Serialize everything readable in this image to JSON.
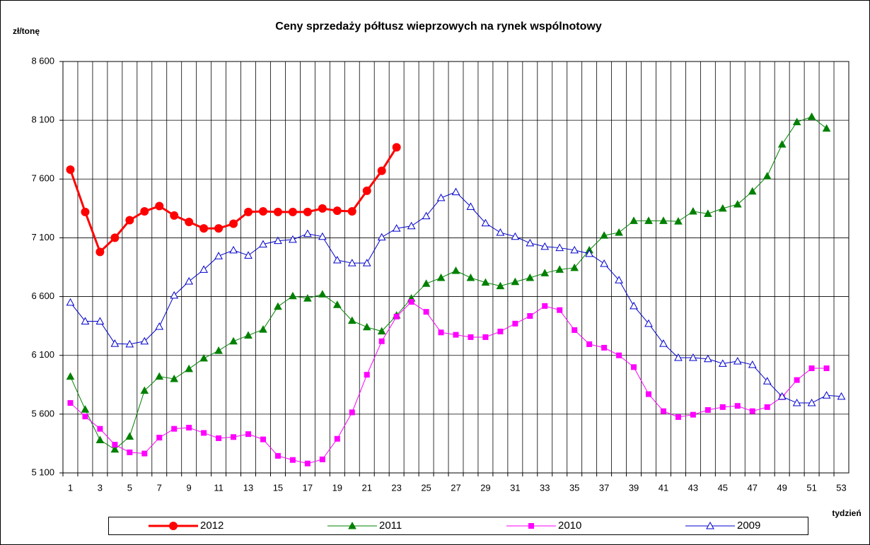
{
  "chart_data": {
    "type": "line",
    "title": "Ceny sprzedaży półtusz wieprzowych na rynek wspólnotowy",
    "y_label": "zł/tonę",
    "x_label": "tydzień",
    "categories": [
      1,
      null,
      3,
      null,
      5,
      null,
      7,
      null,
      9,
      null,
      11,
      null,
      13,
      null,
      15,
      null,
      17,
      null,
      19,
      null,
      21,
      null,
      23,
      null,
      25,
      null,
      27,
      null,
      29,
      null,
      31,
      null,
      33,
      null,
      35,
      null,
      37,
      null,
      39,
      null,
      41,
      null,
      43,
      null,
      45,
      null,
      47,
      null,
      49,
      null,
      51,
      null,
      53
    ],
    "ylim": [
      5100,
      8600
    ],
    "yticks": [
      {
        "value": 5100,
        "label": "5 100"
      },
      {
        "value": 5600,
        "label": "5 600"
      },
      {
        "value": 6100,
        "label": "6 100"
      },
      {
        "value": 6600,
        "label": "6 600"
      },
      {
        "value": 7100,
        "label": "7 100"
      },
      {
        "value": 7600,
        "label": "7 600"
      },
      {
        "value": 8100,
        "label": "8 100"
      },
      {
        "value": 8600,
        "label": "8 600"
      }
    ],
    "grid": true,
    "legend": "bottom",
    "series": [
      {
        "name": "2012",
        "color": "#ff0000",
        "marker": "circle",
        "line_width": 3,
        "values": [
          7680,
          7320,
          6980,
          7100,
          7250,
          7325,
          7370,
          7290,
          7235,
          7180,
          7180,
          7220,
          7320,
          7325,
          7320,
          7320,
          7320,
          7350,
          7330,
          7325,
          7500,
          7670,
          7870,
          null,
          null,
          null,
          null,
          null,
          null,
          null,
          null,
          null,
          null,
          null,
          null,
          null,
          null,
          null,
          null,
          null,
          null,
          null,
          null,
          null,
          null,
          null,
          null,
          null,
          null,
          null,
          null,
          null,
          null
        ]
      },
      {
        "name": "2011",
        "color": "#008000",
        "marker": "triangle",
        "line_width": 1,
        "values": [
          5920,
          5640,
          5380,
          5300,
          5410,
          5800,
          5920,
          5900,
          5985,
          6075,
          6140,
          6220,
          6270,
          6320,
          6515,
          6605,
          6585,
          6620,
          6530,
          6395,
          6340,
          6305,
          6440,
          6585,
          6710,
          6760,
          6820,
          6760,
          6720,
          6690,
          6725,
          6760,
          6800,
          6830,
          6845,
          6995,
          7120,
          7145,
          7245,
          7245,
          7245,
          7240,
          7325,
          7305,
          7350,
          7385,
          7495,
          7625,
          7895,
          8085,
          8130,
          8030,
          null
        ]
      },
      {
        "name": "2010",
        "color": "#ff00ff",
        "marker": "square",
        "line_width": 1,
        "values": [
          5695,
          5580,
          5475,
          5340,
          5275,
          5265,
          5400,
          5475,
          5485,
          5440,
          5395,
          5405,
          5430,
          5385,
          5245,
          5210,
          5180,
          5215,
          5390,
          5615,
          5935,
          6220,
          6430,
          6555,
          6470,
          6295,
          6275,
          6255,
          6255,
          6303,
          6370,
          6435,
          6520,
          6485,
          6315,
          6195,
          6165,
          6100,
          6000,
          5770,
          5625,
          5575,
          5595,
          5635,
          5660,
          5670,
          5625,
          5660,
          5745,
          5890,
          5990,
          5990,
          null
        ]
      },
      {
        "name": "2009",
        "color": "#0000cc",
        "marker": "open-triangle",
        "line_width": 1,
        "values": [
          6550,
          6390,
          6390,
          6200,
          6195,
          6220,
          6345,
          6610,
          6730,
          6830,
          6945,
          6995,
          6950,
          7045,
          7075,
          7085,
          7135,
          7110,
          6910,
          6885,
          6885,
          7105,
          7180,
          7200,
          7285,
          7440,
          7490,
          7365,
          7225,
          7145,
          7110,
          7055,
          7025,
          7015,
          6995,
          6965,
          6880,
          6740,
          6520,
          6370,
          6200,
          6080,
          6080,
          6070,
          6030,
          6050,
          6020,
          5880,
          5750,
          5695,
          5695,
          5760,
          5750
        ]
      }
    ]
  }
}
